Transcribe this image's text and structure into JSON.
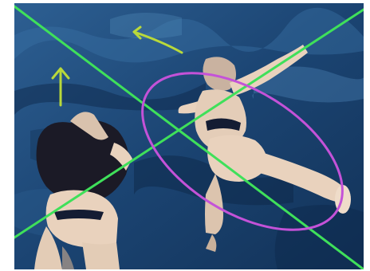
{
  "image": {
    "subject": "two-swimmers-underwater-illustration",
    "colors": {
      "water_deep": "#0b2747",
      "water_mid": "#1c4a78",
      "water_light": "#3a72a6",
      "skin": "#e9d2bd",
      "skin_shadow": "#b7a08c",
      "hair": "#1b1a26",
      "swimsuit": "#141c33",
      "green_line": "#3fe05a",
      "ellipse": "#c452d8",
      "arrow": "#b9d93a",
      "border": "#ffffff"
    },
    "annotations": {
      "diagonal_lines": 2,
      "ellipses": 1,
      "arrows": 2
    }
  }
}
